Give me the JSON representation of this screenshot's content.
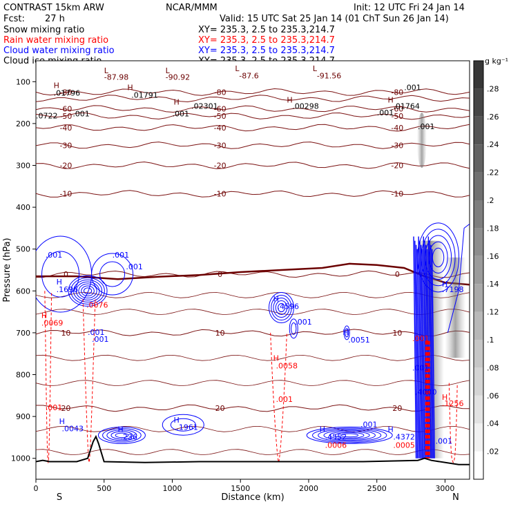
{
  "header": {
    "model": "CONTRAST 15km ARW",
    "center": "NCAR/MMM",
    "init": "Init: 12 UTC Fri 24 Jan 14",
    "fcst_label": "Fcst:",
    "fcst_value": "27 h",
    "valid": "Valid: 15 UTC Sat 25 Jan 14 (01 ChT Sun 26 Jan 14)",
    "fields": [
      {
        "label": "Snow mixing ratio",
        "xy": "XY= 235.3,  2.5 to 235.3,214.7",
        "color": "#000000"
      },
      {
        "label": "Rain water mixing ratio",
        "xy": "XY= 235.3,  2.5 to 235.3,214.7",
        "color": "#ff0000"
      },
      {
        "label": "Cloud water mixing ratio",
        "xy": "XY= 235.3,  2.5 to 235.3,214.7",
        "color": "#0000ff"
      },
      {
        "label": "Cloud ice mixing ratio",
        "xy": "XY= 235.3,  2.5 to 235.3,214.7",
        "color": "#000000"
      }
    ]
  },
  "chart_data": {
    "type": "cross-section",
    "xlabel": "Distance (km)",
    "ylabel": "Pressure (hPa)",
    "xlim": [
      0,
      3180
    ],
    "ylim": [
      1050,
      50
    ],
    "xticks": [
      0,
      500,
      1000,
      1500,
      2000,
      2500,
      3000
    ],
    "yticks": [
      100,
      200,
      300,
      400,
      500,
      600,
      700,
      800,
      900,
      1000
    ],
    "x_end_labels": {
      "left": "S",
      "right": "N"
    },
    "colorbar": {
      "unit": "g kg⁻¹",
      "ticks": [
        ".02",
        ".04",
        ".06",
        ".08",
        ".1",
        ".12",
        ".14",
        ".16",
        ".18",
        ".2",
        ".22",
        ".24",
        ".26",
        ".28"
      ],
      "values": [
        0.02,
        0.04,
        0.06,
        0.08,
        0.1,
        0.12,
        0.14,
        0.16,
        0.18,
        0.2,
        0.22,
        0.24,
        0.26,
        0.28
      ],
      "range": [
        0,
        0.3
      ]
    },
    "temperature_contours": [
      {
        "value": -80,
        "label": "-80",
        "p": 125
      },
      {
        "value": -70,
        "label": "",
        "p": 140
      },
      {
        "value": -60,
        "label": "-60",
        "p": 165
      },
      {
        "value": -50,
        "label": "-50",
        "p": 182
      },
      {
        "value": -40,
        "label": "-40",
        "p": 210
      },
      {
        "value": -30,
        "label": "-30",
        "p": 252
      },
      {
        "value": -20,
        "label": "-20",
        "p": 300
      },
      {
        "value": -10,
        "label": "-10",
        "p": 368
      },
      {
        "value": 0,
        "label": "0",
        "p": 560,
        "bold": true
      },
      {
        "value": 10,
        "label": "10",
        "p": 700
      },
      {
        "value": 20,
        "label": "20",
        "p": 880
      }
    ],
    "freezing_level": [
      [
        0,
        565
      ],
      [
        300,
        565
      ],
      [
        600,
        572
      ],
      [
        900,
        566
      ],
      [
        1200,
        562
      ],
      [
        1500,
        555
      ],
      [
        1800,
        550
      ],
      [
        2100,
        545
      ],
      [
        2300,
        535
      ],
      [
        2500,
        538
      ],
      [
        2700,
        545
      ],
      [
        2850,
        565
      ],
      [
        3000,
        580
      ],
      [
        3180,
        585
      ]
    ],
    "terrain": [
      [
        0,
        1008
      ],
      [
        50,
        1005
      ],
      [
        100,
        1008
      ],
      [
        300,
        1008
      ],
      [
        380,
        1000
      ],
      [
        420,
        960
      ],
      [
        440,
        948
      ],
      [
        460,
        965
      ],
      [
        500,
        1008
      ],
      [
        800,
        1010
      ],
      [
        1200,
        1008
      ],
      [
        1800,
        1008
      ],
      [
        2400,
        1008
      ],
      [
        2800,
        1005
      ],
      [
        2850,
        1000
      ],
      [
        2900,
        1005
      ],
      [
        3100,
        1015
      ],
      [
        3180,
        1015
      ]
    ],
    "annotations": [
      {
        "text": "H",
        "x": 130,
        "p": 115,
        "color": "#6b0000"
      },
      {
        "text": ".01796",
        "x": 130,
        "p": 133,
        "color": "#000000"
      },
      {
        "text": "L",
        "x": 500,
        "p": 80,
        "color": "#6b0000"
      },
      {
        "text": "-87.98",
        "x": 500,
        "p": 95,
        "color": "#6b0000"
      },
      {
        "text": "L",
        "x": 950,
        "p": 80,
        "color": "#6b0000"
      },
      {
        "text": "-90.92",
        "x": 950,
        "p": 95,
        "color": "#6b0000"
      },
      {
        "text": "L",
        "x": 1460,
        "p": 75,
        "color": "#6b0000"
      },
      {
        "text": "-87.6",
        "x": 1490,
        "p": 92,
        "color": "#6b0000"
      },
      {
        "text": "L",
        "x": 2030,
        "p": 75,
        "color": "#6b0000"
      },
      {
        "text": "-91.56",
        "x": 2060,
        "p": 92,
        "color": "#6b0000"
      },
      {
        "text": "H",
        "x": 670,
        "p": 120,
        "color": "#6b0000"
      },
      {
        "text": ".01791",
        "x": 700,
        "p": 138,
        "color": "#000000"
      },
      {
        "text": "H",
        "x": 1840,
        "p": 150,
        "color": "#6b0000"
      },
      {
        "text": ".00298",
        "x": 1880,
        "p": 165,
        "color": "#000000"
      },
      {
        "text": "H",
        "x": 2580,
        "p": 150,
        "color": "#6b0000"
      },
      {
        "text": ".01764",
        "x": 2620,
        "p": 165,
        "color": "#000000"
      },
      {
        "text": ".001",
        "x": 2700,
        "p": 120,
        "color": "#000000"
      },
      {
        "text": "H",
        "x": 1010,
        "p": 155,
        "color": "#6b0000"
      },
      {
        "text": ".02301",
        "x": 1140,
        "p": 165,
        "color": "#000000"
      },
      {
        "text": ".001",
        "x": 270,
        "p": 183,
        "color": "#000000"
      },
      {
        "text": ".001",
        "x": 1000,
        "p": 183,
        "color": "#000000"
      },
      {
        "text": ".0722",
        "x": 0,
        "p": 188,
        "color": "#000000"
      },
      {
        "text": ".001",
        "x": 2800,
        "p": 213,
        "color": "#000000"
      },
      {
        "text": ".001",
        "x": 2500,
        "p": 180,
        "color": "#000000"
      },
      {
        "text": ".001",
        "x": 70,
        "p": 520,
        "color": "#0000ff"
      },
      {
        "text": ".001",
        "x": 560,
        "p": 520,
        "color": "#0000ff"
      },
      {
        "text": ".001",
        "x": 660,
        "p": 548,
        "color": "#0000ff"
      },
      {
        "text": "H",
        "x": 150,
        "p": 585,
        "color": "#0000ff"
      },
      {
        "text": ".1696",
        "x": 150,
        "p": 603,
        "color": "#0000ff"
      },
      {
        "text": ".0076",
        "x": 370,
        "p": 640,
        "color": "#ff0000"
      },
      {
        "text": "H",
        "x": 40,
        "p": 665,
        "color": "#ff0000"
      },
      {
        "text": ".0069",
        "x": 40,
        "p": 683,
        "color": "#ff0000"
      },
      {
        "text": ".001",
        "x": 380,
        "p": 705,
        "color": "#0000ff"
      },
      {
        "text": ".001",
        "x": 410,
        "p": 722,
        "color": "#0000ff"
      },
      {
        "text": "H",
        "x": 1740,
        "p": 625,
        "color": "#0000ff"
      },
      {
        "text": ".4596",
        "x": 1770,
        "p": 643,
        "color": "#0000ff"
      },
      {
        "text": ".001",
        "x": 1900,
        "p": 680,
        "color": "#0000ff"
      },
      {
        "text": "H",
        "x": 2250,
        "p": 705,
        "color": "#0000ff"
      },
      {
        "text": ".0051",
        "x": 2290,
        "p": 723,
        "color": "#0000ff"
      },
      {
        "text": "H",
        "x": 1740,
        "p": 767,
        "color": "#ff0000"
      },
      {
        "text": ".0058",
        "x": 1760,
        "p": 785,
        "color": "#ff0000"
      },
      {
        "text": ".001",
        "x": 1760,
        "p": 865,
        "color": "#ff0000"
      },
      {
        "text": "H",
        "x": 3100,
        "p": 590,
        "color": "#0000ff"
      },
      {
        "text": ".7198",
        "x": 3130,
        "p": 603,
        "color": "#0000ff"
      },
      {
        "text": "H",
        "x": 3040,
        "p": 860,
        "color": "#ff0000"
      },
      {
        "text": ".1256",
        "x": 3060,
        "p": 875,
        "color": "#ff0000"
      },
      {
        "text": ".001",
        "x": 2760,
        "p": 720,
        "color": "#ff0000"
      },
      {
        "text": ".001",
        "x": 2760,
        "p": 790,
        "color": "#0000ff"
      },
      {
        "text": ".001",
        "x": 70,
        "p": 885,
        "color": "#ff0000"
      },
      {
        "text": "H",
        "x": 170,
        "p": 918,
        "color": "#0000ff"
      },
      {
        "text": ".0043",
        "x": 190,
        "p": 935,
        "color": "#0000ff"
      },
      {
        "text": "H",
        "x": 600,
        "p": 937,
        "color": "#0000ff"
      },
      {
        "text": ".236",
        "x": 620,
        "p": 955,
        "color": "#0000ff"
      },
      {
        "text": "H",
        "x": 1010,
        "p": 915,
        "color": "#0000ff"
      },
      {
        "text": ".1961",
        "x": 1030,
        "p": 932,
        "color": "#0000ff"
      },
      {
        "text": ".001",
        "x": 2380,
        "p": 925,
        "color": "#0000ff"
      },
      {
        "text": "H",
        "x": 2080,
        "p": 937,
        "color": "#0000ff"
      },
      {
        "text": ".4552",
        "x": 2120,
        "p": 955,
        "color": "#0000ff"
      },
      {
        "text": ".0006",
        "x": 2120,
        "p": 975,
        "color": "#ff0000"
      },
      {
        "text": "H",
        "x": 2580,
        "p": 937,
        "color": "#0000ff"
      },
      {
        "text": ".4372",
        "x": 2620,
        "p": 955,
        "color": "#0000ff"
      },
      {
        "text": ".0005",
        "x": 2620,
        "p": 975,
        "color": "#ff0000"
      },
      {
        "text": ".4000",
        "x": 2780,
        "p": 848,
        "color": "#0000ff"
      },
      {
        "text": ".001",
        "x": 2930,
        "p": 965,
        "color": "#0000ff"
      }
    ]
  }
}
